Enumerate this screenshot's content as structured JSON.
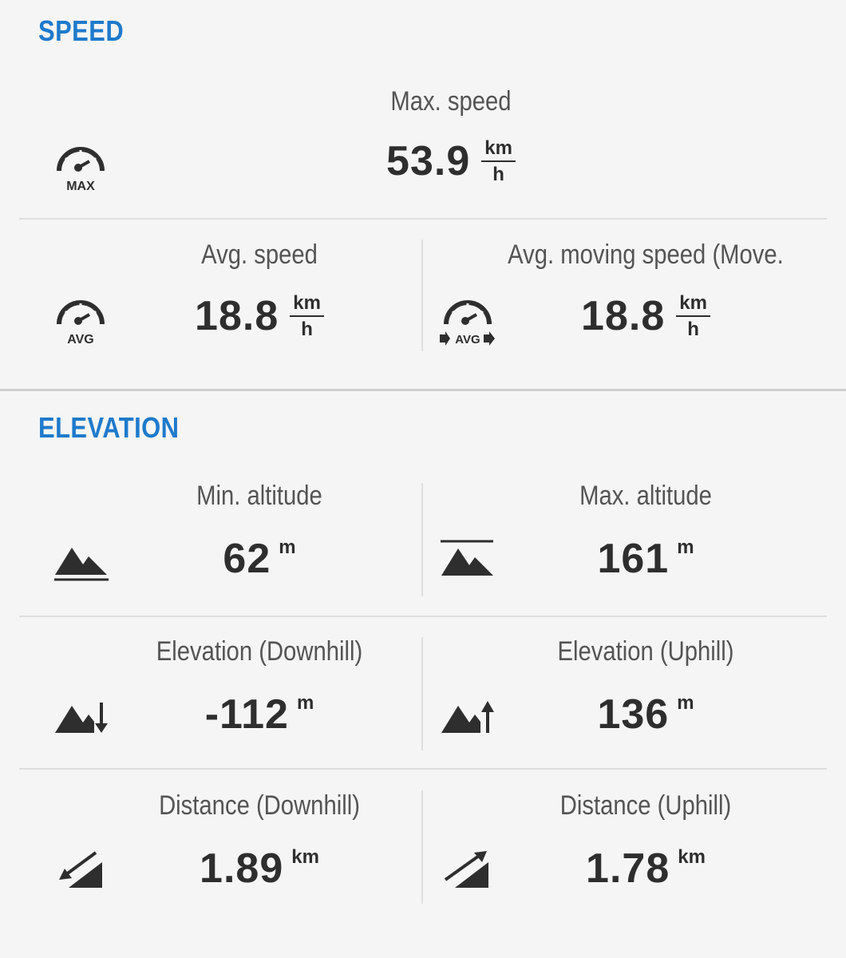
{
  "speed": {
    "title": "SPEED",
    "max": {
      "label": "Max. speed",
      "value": "53.9",
      "unit_top": "km",
      "unit_bottom": "h",
      "icon": "speedometer-max-icon",
      "icon_text": "MAX"
    },
    "avg": {
      "label": "Avg. speed",
      "value": "18.8",
      "unit_top": "km",
      "unit_bottom": "h",
      "icon": "speedometer-avg-icon",
      "icon_text": "AVG"
    },
    "avg_moving": {
      "label": "Avg. moving speed (Move.",
      "value": "18.8",
      "unit_top": "km",
      "unit_bottom": "h",
      "icon": "speedometer-avg-moving-icon",
      "icon_text": "AVG"
    }
  },
  "elevation": {
    "title": "ELEVATION",
    "min_altitude": {
      "label": "Min. altitude",
      "value": "62",
      "unit": "m",
      "icon": "min-altitude-icon"
    },
    "max_altitude": {
      "label": "Max. altitude",
      "value": "161",
      "unit": "m",
      "icon": "max-altitude-icon"
    },
    "elev_down": {
      "label": "Elevation (Downhill)",
      "value": "-112",
      "unit": "m",
      "icon": "mountain-down-arrow-icon"
    },
    "elev_up": {
      "label": "Elevation (Uphill)",
      "value": "136",
      "unit": "m",
      "icon": "mountain-up-arrow-icon"
    },
    "dist_down": {
      "label": "Distance (Downhill)",
      "value": "1.89",
      "unit": "km",
      "icon": "slope-down-arrow-icon"
    },
    "dist_up": {
      "label": "Distance (Uphill)",
      "value": "1.78",
      "unit": "km",
      "icon": "slope-up-arrow-icon"
    }
  },
  "colors": {
    "accent": "#1e7acb",
    "background": "#f5f5f5",
    "text": "#2e2e2e",
    "label": "#545454"
  }
}
